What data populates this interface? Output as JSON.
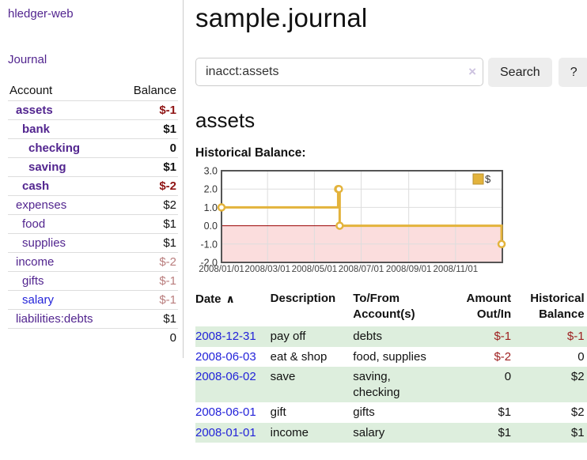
{
  "app": {
    "title": "hledger-web",
    "nav_journal": "Journal"
  },
  "sidebar": {
    "header": {
      "account": "Account",
      "balance": "Balance"
    },
    "accounts": [
      {
        "name": "assets",
        "indent": 1,
        "bold": true,
        "balance": "$-1",
        "balance_class": "bal-neg-strong",
        "link_class": "purple"
      },
      {
        "name": "bank",
        "indent": 2,
        "bold": true,
        "balance": "$1",
        "balance_class": "",
        "link_class": "purple"
      },
      {
        "name": "checking",
        "indent": 3,
        "bold": true,
        "balance": "0",
        "balance_class": "",
        "link_class": "purple"
      },
      {
        "name": "saving",
        "indent": 3,
        "bold": true,
        "balance": "$1",
        "balance_class": "",
        "link_class": "purple"
      },
      {
        "name": "cash",
        "indent": 2,
        "bold": true,
        "balance": "$-2",
        "balance_class": "bal-neg-strong",
        "link_class": "purple"
      },
      {
        "name": "expenses",
        "indent": 1,
        "bold": false,
        "balance": "$2",
        "balance_class": "",
        "link_class": "purple"
      },
      {
        "name": "food",
        "indent": 2,
        "bold": false,
        "balance": "$1",
        "balance_class": "",
        "link_class": "purple"
      },
      {
        "name": "supplies",
        "indent": 2,
        "bold": false,
        "balance": "$1",
        "balance_class": "",
        "link_class": "purple"
      },
      {
        "name": "income",
        "indent": 1,
        "bold": false,
        "balance": "$-2",
        "balance_class": "bal-neg-soft",
        "link_class": "purple"
      },
      {
        "name": "gifts",
        "indent": 2,
        "bold": false,
        "balance": "$-1",
        "balance_class": "bal-neg-soft",
        "link_class": "purple"
      },
      {
        "name": "salary",
        "indent": 2,
        "bold": false,
        "balance": "$-1",
        "balance_class": "bal-neg-soft",
        "link_class": "blue"
      },
      {
        "name": "liabilities:debts",
        "indent": 1,
        "bold": false,
        "balance": "$1",
        "balance_class": "",
        "link_class": "purple"
      }
    ],
    "total": "0"
  },
  "header": {
    "title": "sample.journal"
  },
  "search": {
    "value": "inacct:assets",
    "clear_label": "×",
    "button_label": "Search",
    "help_label": "?"
  },
  "account_page": {
    "heading": "assets",
    "chart_label": "Historical Balance:"
  },
  "chart_data": {
    "type": "line",
    "title": "Historical Balance",
    "x_range": [
      "2008-01-01",
      "2009-01-01"
    ],
    "y_range": [
      -2,
      3
    ],
    "step": "after",
    "series": [
      {
        "name": "$",
        "points": [
          {
            "date": "2008-01-01",
            "value": 1
          },
          {
            "date": "2008-06-01",
            "value": 2
          },
          {
            "date": "2008-06-02",
            "value": 2
          },
          {
            "date": "2008-06-03",
            "value": 0
          },
          {
            "date": "2008-12-31",
            "value": -1
          }
        ]
      }
    ],
    "y_ticks": [
      {
        "label": "3.0",
        "value": 3
      },
      {
        "label": "2.0",
        "value": 2
      },
      {
        "label": "1.0",
        "value": 1
      },
      {
        "label": "0.0",
        "value": 0
      },
      {
        "label": "-1.0",
        "value": -1
      },
      {
        "label": "-2.0",
        "value": -2
      }
    ],
    "x_ticks": [
      {
        "label": "2008/01/01",
        "date": "2008-01-01"
      },
      {
        "label": "2008/03/01",
        "date": "2008-03-01"
      },
      {
        "label": "2008/05/01",
        "date": "2008-05-01"
      },
      {
        "label": "2008/07/01",
        "date": "2008-07-01"
      },
      {
        "label": "2008/09/01",
        "date": "2008-09-01"
      },
      {
        "label": "2008/11/01",
        "date": "2008-11-01"
      }
    ],
    "legend": {
      "position": "top-right",
      "entries": [
        "$"
      ]
    },
    "grid": true,
    "colors": {
      "line": "#e3b33c",
      "marker_fill": "#ffffff",
      "negative_fill": "#fbdddd",
      "zero_line": "#990000",
      "border": "#555555",
      "grid": "#dddddd"
    }
  },
  "register": {
    "columns": {
      "date": "Date",
      "sort_icon": "∧",
      "description": "Description",
      "accounts": "To/From Account(s)",
      "amount": "Amount Out/In",
      "balance": "Historical Balance"
    },
    "rows": [
      {
        "date": "2008-12-31",
        "description": "pay off",
        "accounts": "debts",
        "amount": "$-1",
        "amount_neg": true,
        "balance": "$-1",
        "balance_neg": true,
        "shaded": true
      },
      {
        "date": "2008-06-03",
        "description": "eat & shop",
        "accounts": "food, supplies",
        "amount": "$-2",
        "amount_neg": true,
        "balance": "0",
        "balance_neg": false,
        "shaded": false
      },
      {
        "date": "2008-06-02",
        "description": "save",
        "accounts": "saving,\nchecking",
        "amount": "0",
        "amount_neg": false,
        "balance": "$2",
        "balance_neg": false,
        "shaded": true
      },
      {
        "date": "2008-06-01",
        "description": "gift",
        "accounts": "gifts",
        "amount": "$1",
        "amount_neg": false,
        "balance": "$2",
        "balance_neg": false,
        "shaded": false
      },
      {
        "date": "2008-01-01",
        "description": "income",
        "accounts": "salary",
        "amount": "$1",
        "amount_neg": false,
        "balance": "$1",
        "balance_neg": false,
        "shaded": true
      }
    ]
  }
}
